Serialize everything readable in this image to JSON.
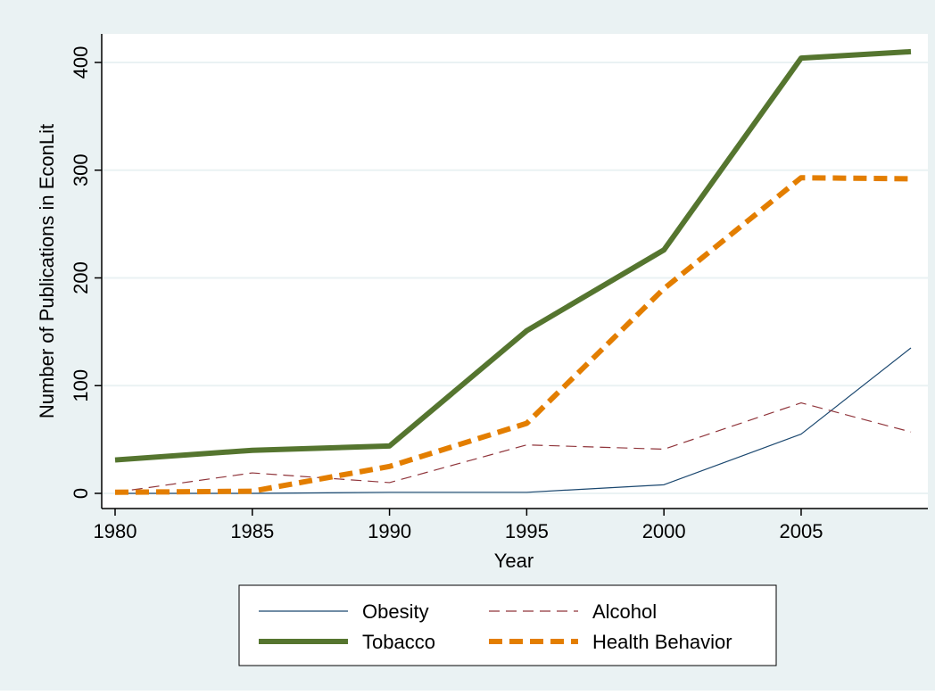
{
  "chart_data": {
    "type": "line",
    "title": "",
    "xlabel": "Year",
    "ylabel": "Number of Publications in EconLit",
    "x_ticks": [
      1980,
      1985,
      1990,
      1995,
      2000,
      2005
    ],
    "y_ticks": [
      0,
      100,
      200,
      300,
      400
    ],
    "xlim": [
      1980,
      2009
    ],
    "ylim": [
      -12,
      426
    ],
    "grid": true,
    "legend_position": "bottom",
    "x": [
      1980,
      1985,
      1990,
      1995,
      2000,
      2005,
      2009
    ],
    "series": [
      {
        "name": "Obesity",
        "values": [
          0,
          0,
          1,
          1,
          8,
          55,
          135
        ],
        "color": "#1a476f",
        "style": "solid-thin"
      },
      {
        "name": "Alcohol",
        "values": [
          1,
          19,
          10,
          45,
          41,
          84,
          57
        ],
        "color": "#90353b",
        "style": "dashed-thin"
      },
      {
        "name": "Tobacco",
        "values": [
          31,
          40,
          44,
          151,
          226,
          404,
          410
        ],
        "color": "#55752f",
        "style": "solid-thick"
      },
      {
        "name": "Health Behavior",
        "values": [
          1,
          2,
          25,
          65,
          190,
          293,
          292
        ],
        "color": "#e37e00",
        "style": "dashed-thick"
      }
    ],
    "colors": {
      "background": "#eaf2f3",
      "plot_area": "#ffffff",
      "grid": "#eaf2f3"
    }
  }
}
